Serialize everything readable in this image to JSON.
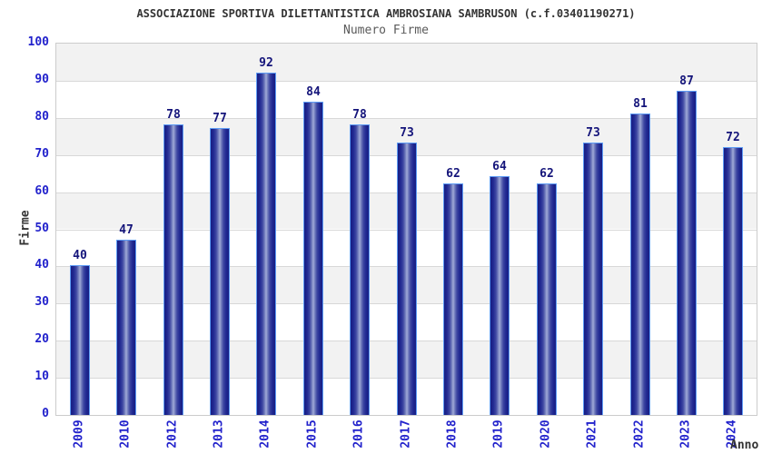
{
  "header": {
    "title": "ASSOCIAZIONE SPORTIVA DILETTANTISTICA AMBROSIANA SAMBRUSON (c.f.03401190271)",
    "subtitle": "Numero Firme"
  },
  "chart_data": {
    "type": "bar",
    "title": "ASSOCIAZIONE SPORTIVA DILETTANTISTICA AMBROSIANA SAMBRUSON (c.f.03401190271)",
    "subtitle": "Numero Firme",
    "categories": [
      "2009",
      "2010",
      "2012",
      "2013",
      "2014",
      "2015",
      "2016",
      "2017",
      "2018",
      "2019",
      "2020",
      "2021",
      "2022",
      "2023",
      "2024"
    ],
    "values": [
      40,
      47,
      78,
      77,
      92,
      84,
      78,
      73,
      62,
      64,
      62,
      73,
      81,
      87,
      72
    ],
    "xlabel": "Anno",
    "ylabel": "Firme",
    "ylim": [
      0,
      100
    ],
    "ytick_step": 10,
    "yticks": [
      0,
      10,
      20,
      30,
      40,
      50,
      60,
      70,
      80,
      90,
      100
    ],
    "grid": true,
    "legend": false,
    "data_labels": true
  },
  "style": {
    "title_color": "#333333",
    "subtitle_color": "#5a5a5a",
    "tick_label_color": "#2222cc",
    "value_label_color": "#14147a",
    "axis_label_color": "#333333",
    "band_gray": "#f2f2f2",
    "band_white": "#ffffff",
    "gridline_color": "#d8d8d8",
    "plot_border_color": "#cccccc",
    "bar_edge_color": "#171e84",
    "bar_center_color": "#a2abd8",
    "bar_outline_color": "#5e9cf5",
    "page_background": "#ffffff"
  }
}
